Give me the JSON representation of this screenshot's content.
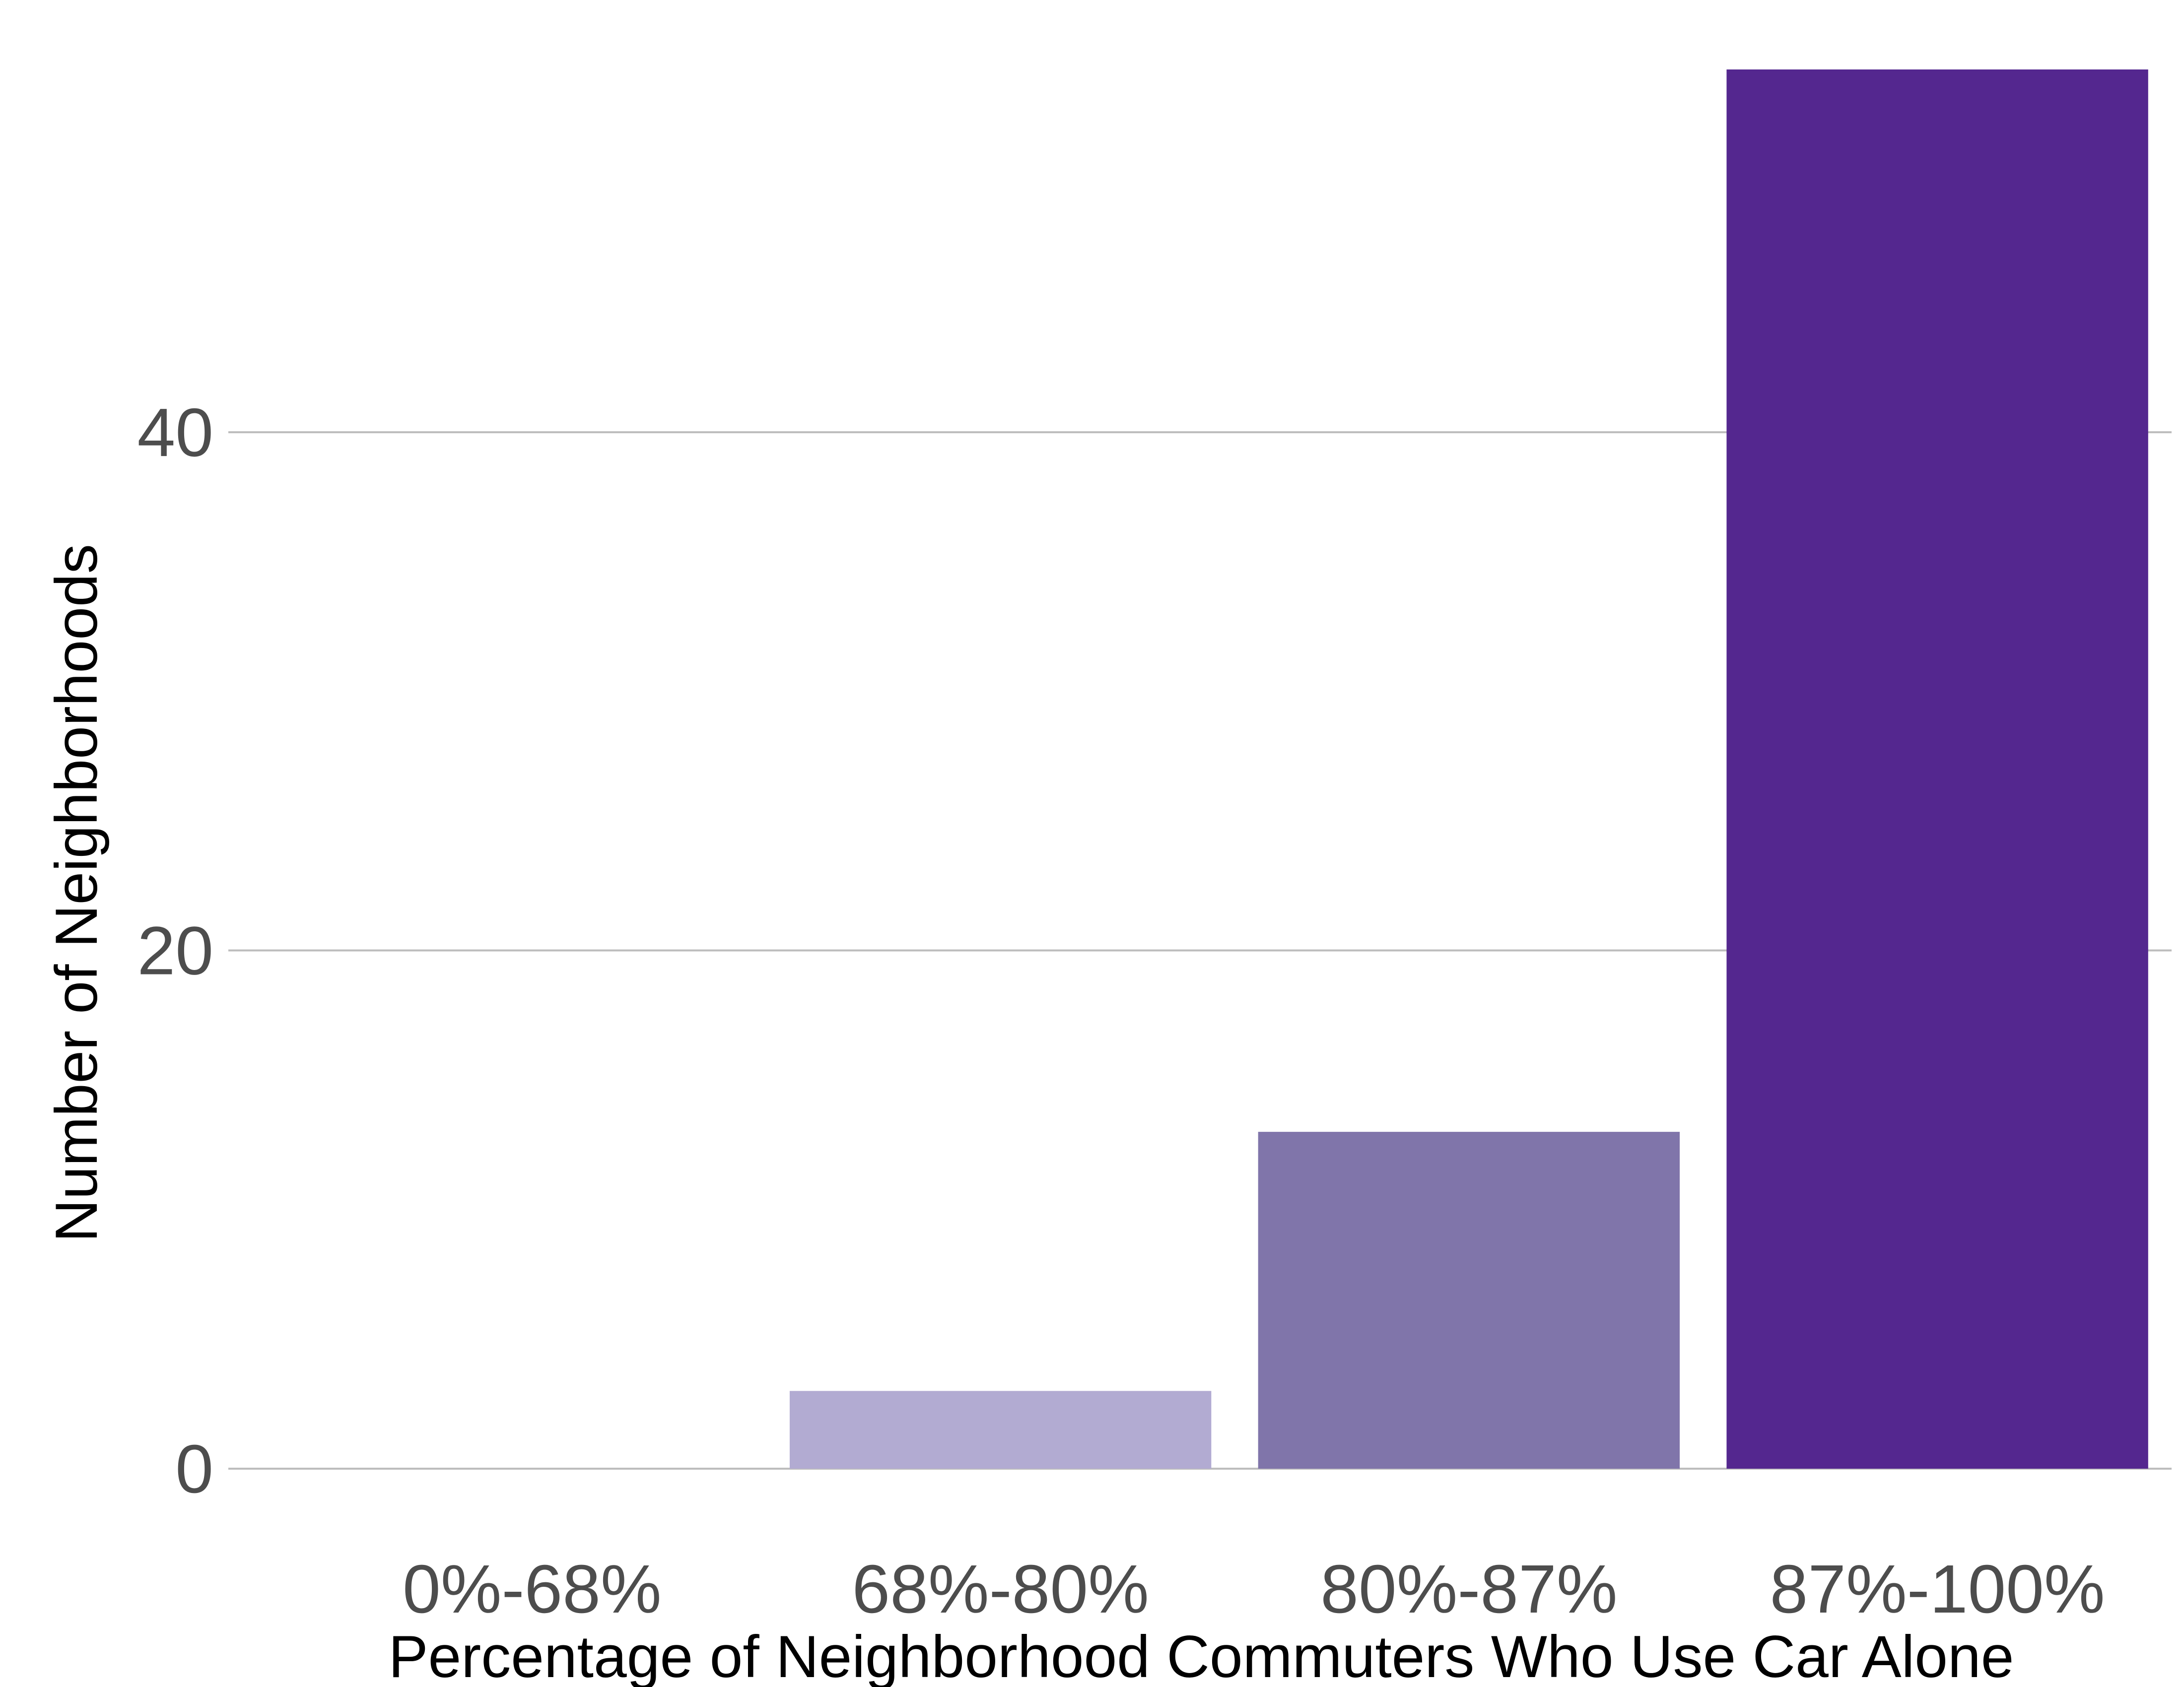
{
  "chart_data": {
    "type": "bar",
    "categories": [
      "0%-68%",
      "68%-80%",
      "80%-87%",
      "87%-100%"
    ],
    "values": [
      0,
      3,
      13,
      54
    ],
    "colors": [
      "#f2f0f7",
      "#b2abd2",
      "#8075aa",
      "#54278f"
    ],
    "xlabel": "Percentage of Neighborhood Commuters Who Use Car Alone",
    "ylabel": "Number of Neighborhoods",
    "ylim": [
      0,
      54
    ],
    "yticks": [
      0,
      20,
      40
    ],
    "grid": "horizontal",
    "legend": "none"
  }
}
